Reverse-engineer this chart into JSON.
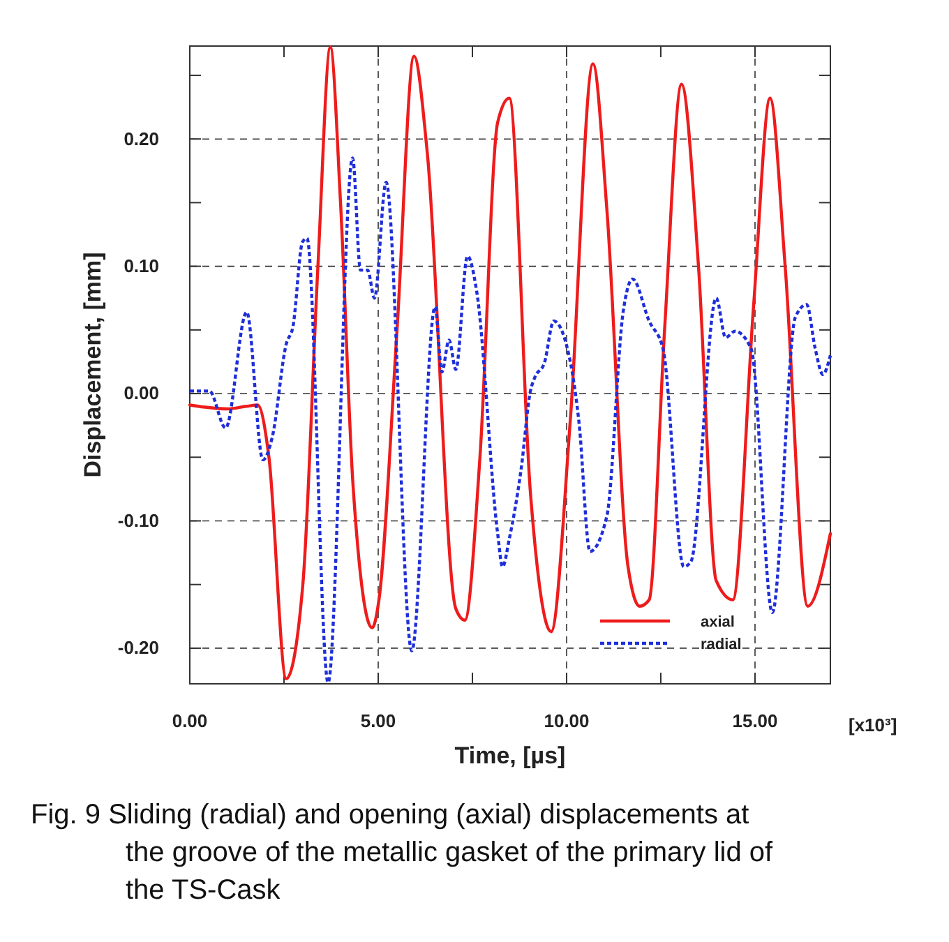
{
  "chart_data": {
    "type": "line",
    "title": "Fig. 9 Sliding (radial) and opening (axial) displacements at the groove of the metallic gasket of the primary lid of the TS-Cask",
    "xlabel": "Time,  [µs]",
    "ylabel": "Displacement,  [mm]",
    "xlim": [
      0,
      17
    ],
    "ylim": [
      -0.228,
      0.273
    ],
    "xticks": [
      {
        "value": 0,
        "label": "0.00"
      },
      {
        "value": 2.5,
        "label": null
      },
      {
        "value": 5,
        "label": "5.00"
      },
      {
        "value": 7.5,
        "label": null
      },
      {
        "value": 10,
        "label": "10.00"
      },
      {
        "value": 12.5,
        "label": null
      },
      {
        "value": 15,
        "label": "15.00"
      }
    ],
    "yticks": [
      {
        "value": -0.2,
        "label": "-0.20"
      },
      {
        "value": -0.15,
        "label": null
      },
      {
        "value": -0.1,
        "label": "-0.10"
      },
      {
        "value": -0.05,
        "label": null
      },
      {
        "value": 0,
        "label": "0.00"
      },
      {
        "value": 0.05,
        "label": null
      },
      {
        "value": 0.1,
        "label": "0.10"
      },
      {
        "value": 0.15,
        "label": null
      },
      {
        "value": 0.2,
        "label": "0.20"
      },
      {
        "value": 0.25,
        "label": null
      }
    ],
    "grid": true,
    "legend": "bottom right",
    "annotations": [
      "[x10³]"
    ],
    "series": [
      {
        "name": "axial",
        "color": "#ee1c1c",
        "line_style": "solid",
        "x": [
          0,
          1.0,
          1.5,
          1.8,
          2.1,
          2.56,
          3.0,
          3.4,
          3.73,
          4.0,
          4.33,
          4.84,
          5.02,
          5.5,
          5.95,
          6.3,
          7.06,
          7.3,
          7.7,
          8.17,
          8.48,
          9.04,
          9.59,
          10.1,
          10.7,
          11.07,
          11.63,
          11.94,
          12.19,
          12.6,
          13.05,
          13.5,
          13.97,
          14.41,
          14.96,
          15.4,
          15.8,
          16.4,
          17
        ],
        "values": [
          -0.009,
          -0.012,
          -0.01,
          -0.009,
          -0.05,
          -0.224,
          -0.15,
          0.1,
          0.272,
          0.15,
          -0.071,
          -0.184,
          -0.162,
          0.05,
          0.265,
          0.19,
          -0.169,
          -0.178,
          -0.05,
          0.213,
          0.232,
          -0.078,
          -0.187,
          -0.02,
          0.259,
          0.144,
          -0.136,
          -0.167,
          -0.162,
          0.05,
          0.243,
          0.1,
          -0.147,
          -0.162,
          0.068,
          0.232,
          0.1,
          -0.167,
          -0.11
        ]
      },
      {
        "name": "radial",
        "color": "#1f2fd8",
        "line_style": "dotted",
        "x": [
          0,
          0.52,
          0.95,
          1.51,
          1.94,
          2.19,
          2.56,
          2.74,
          2.99,
          3.11,
          3.67,
          4.32,
          4.53,
          4.72,
          4.9,
          5.21,
          5.89,
          6.51,
          6.69,
          6.88,
          7.06,
          7.37,
          7.62,
          8.17,
          8.3,
          8.48,
          8.79,
          9.04,
          9.16,
          9.41,
          9.66,
          9.96,
          10.33,
          10.62,
          11.07,
          11.5,
          11.75,
          12.19,
          12.56,
          13.11,
          13.3,
          13.97,
          14.22,
          14.47,
          14.9,
          15.46,
          16.07,
          16.37,
          16.6,
          16.8,
          17
        ],
        "values": [
          0.002,
          0.002,
          -0.027,
          0.064,
          -0.052,
          -0.034,
          0.039,
          0.053,
          0.119,
          0.122,
          -0.227,
          0.185,
          0.097,
          0.097,
          0.075,
          0.166,
          -0.202,
          0.068,
          0.017,
          0.042,
          0.019,
          0.108,
          0.079,
          -0.11,
          -0.136,
          -0.114,
          -0.06,
          0.002,
          0.013,
          0.024,
          0.057,
          0.042,
          -0.023,
          -0.124,
          -0.096,
          0.064,
          0.09,
          0.057,
          0.035,
          -0.136,
          -0.132,
          0.075,
          0.044,
          0.049,
          0.035,
          -0.172,
          0.06,
          0.07,
          0.035,
          0.015,
          0.03
        ]
      }
    ]
  }
}
